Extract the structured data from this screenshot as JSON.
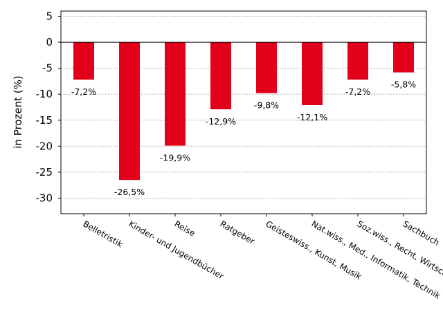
{
  "chart_data": {
    "type": "bar",
    "title": "",
    "xlabel": "",
    "ylabel": "in Prozent (%)",
    "categories": [
      "Belletristik",
      "Kinder- und Jugendbücher",
      "Reise",
      "Ratgeber",
      "Geisteswiss., Kunst, Musik",
      "Nat.wiss., Med., Informatik, Technik",
      "Soz.wiss., Recht, Wirtsch.",
      "Sachbuch"
    ],
    "values": [
      -7.2,
      -26.5,
      -19.9,
      -12.9,
      -9.8,
      -12.1,
      -7.2,
      -5.8
    ],
    "data_labels": [
      "-7,2%",
      "-26,5%",
      "-19,9%",
      "-12,9%",
      "-9,8%",
      "-12,1%",
      "-7,2%",
      "-5,8%"
    ],
    "ylim": [
      -33,
      6
    ],
    "yticks": [
      5,
      0,
      -5,
      -10,
      -15,
      -20,
      -25,
      -30
    ],
    "ytick_labels": [
      "5",
      "0",
      "-5",
      "-10",
      "-15",
      "-20",
      "-25",
      "-30"
    ],
    "grid": "horizontal dotted",
    "legend": "none",
    "colors": {
      "bar": "#e2001a",
      "grid": "#b0b0b0",
      "axis": "#000000"
    }
  }
}
